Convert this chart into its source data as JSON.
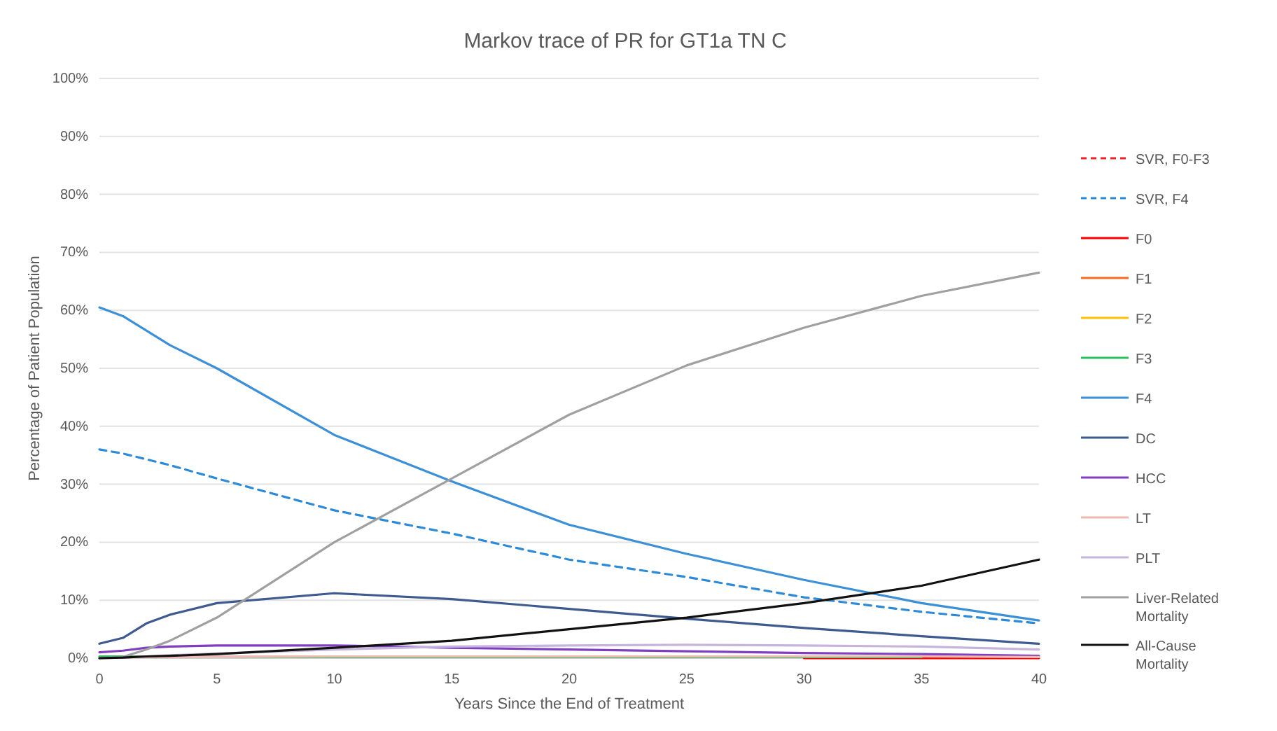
{
  "chart_data": {
    "type": "line",
    "title": "Markov trace of PR for GT1a TN C",
    "xlabel": "Years Since the End of Treatment",
    "ylabel": "Percentage of Patient Population",
    "x": [
      0,
      1,
      2,
      3,
      5,
      10,
      15,
      20,
      25,
      30,
      35,
      40
    ],
    "xlim": [
      0,
      40
    ],
    "xticks": [
      0,
      5,
      10,
      15,
      20,
      25,
      30,
      35,
      40
    ],
    "ylim": [
      0,
      100
    ],
    "yticks": [
      {
        "value": 0,
        "label": "0%"
      },
      {
        "value": 10,
        "label": "10%"
      },
      {
        "value": 20,
        "label": "20%"
      },
      {
        "value": 30,
        "label": "30%"
      },
      {
        "value": 40,
        "label": "40%"
      },
      {
        "value": 50,
        "label": "50%"
      },
      {
        "value": 60,
        "label": "60%"
      },
      {
        "value": 70,
        "label": "70%"
      },
      {
        "value": 80,
        "label": "80%"
      },
      {
        "value": 90,
        "label": "90%"
      },
      {
        "value": 100,
        "label": "100%"
      }
    ],
    "grid": "y",
    "legend": "right",
    "marker": "none",
    "series": [
      {
        "name": "SVR, F0-F3",
        "color": "#e8262a",
        "line_style": "dashed",
        "values": [
          null,
          null,
          null,
          null,
          null,
          null,
          null,
          null,
          null,
          null,
          null,
          null
        ]
      },
      {
        "name": "SVR, F4",
        "color": "#2f8ad6",
        "line_style": "dashed",
        "values": [
          36,
          35.3,
          34.3,
          33.3,
          31,
          25.5,
          21.5,
          17,
          14,
          10.5,
          8,
          6
        ]
      },
      {
        "name": "F0",
        "color": "#ff0000",
        "line_style": "solid",
        "values": [
          null,
          null,
          null,
          null,
          null,
          null,
          null,
          null,
          null,
          0,
          0,
          0
        ]
      },
      {
        "name": "F1",
        "color": "#f26b21",
        "line_style": "solid",
        "values": [
          null,
          null,
          null,
          null,
          null,
          null,
          null,
          null,
          null,
          null,
          null,
          null
        ]
      },
      {
        "name": "F2",
        "color": "#ffc000",
        "line_style": "solid",
        "values": [
          null,
          null,
          null,
          null,
          null,
          null,
          null,
          null,
          null,
          null,
          null,
          null
        ]
      },
      {
        "name": "F3",
        "color": "#2ec060",
        "line_style": "solid",
        "values": [
          0.3,
          0.3,
          0.3,
          0.3,
          0.3,
          0.2,
          0.2,
          0.2,
          0.2,
          0.2,
          0.2,
          null
        ]
      },
      {
        "name": "F4",
        "color": "#3d8fd6",
        "line_style": "solid",
        "values": [
          60.5,
          59,
          56.5,
          54,
          50,
          38.5,
          30.5,
          23,
          18,
          13.5,
          9.5,
          6.5
        ]
      },
      {
        "name": "DC",
        "color": "#3e5a8e",
        "line_style": "solid",
        "values": [
          2.5,
          3.5,
          6,
          7.5,
          9.5,
          11.2,
          10.2,
          8.5,
          6.8,
          5.2,
          3.8,
          2.5
        ]
      },
      {
        "name": "HCC",
        "color": "#7f3fbf",
        "line_style": "solid",
        "values": [
          1,
          1.3,
          1.8,
          2,
          2.2,
          2.2,
          1.8,
          1.5,
          1.2,
          0.9,
          0.7,
          0.4
        ]
      },
      {
        "name": "LT",
        "color": "#f0b8b0",
        "line_style": "solid",
        "values": [
          0,
          null,
          0.2,
          0.2,
          0.3,
          0.3,
          0.3,
          0.3,
          0.3,
          0.3,
          0.3,
          0.2
        ]
      },
      {
        "name": "PLT",
        "color": "#c6b4dc",
        "line_style": "solid",
        "values": [
          0,
          0.1,
          0.3,
          0.5,
          0.8,
          1.5,
          2,
          2.2,
          2.3,
          2.2,
          2,
          1.5
        ]
      },
      {
        "name": "Liver-Related Mortality",
        "color": "#a0a0a0",
        "line_style": "solid",
        "values": [
          0,
          0.2,
          1.5,
          3,
          7,
          20,
          31,
          42,
          50.5,
          57,
          62.5,
          66.5
        ]
      },
      {
        "name": "All-Cause Mortality",
        "color": "#111111",
        "line_style": "solid",
        "values": [
          0,
          0.1,
          0.3,
          0.4,
          0.7,
          1.8,
          3,
          5,
          7,
          9.5,
          12.5,
          17
        ]
      }
    ]
  }
}
